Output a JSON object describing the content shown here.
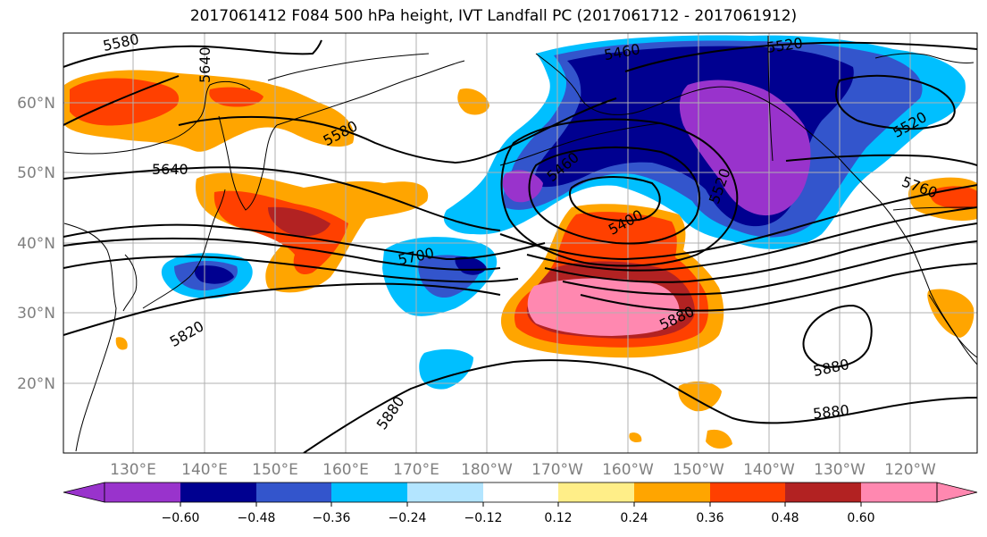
{
  "title": "2017061412 F084 500 hPa height, IVT Landfall PC (2017061712 - 2017061912)",
  "colors": {
    "purple": "#9933cc",
    "navy": "#000090",
    "royal": "#3355cc",
    "sky": "#00bfff",
    "pale_blue": "#b3e5ff",
    "white": "#ffffff",
    "pale_yellow": "#ffee88",
    "orange": "#ffa500",
    "red_orange": "#ff4000",
    "dark_red": "#b22222",
    "pink": "#ff88b0",
    "gridline": "#b0b0b0",
    "coast": "#000000"
  },
  "map": {
    "lat_labels": [
      "60°N",
      "50°N",
      "40°N",
      "30°N",
      "20°N"
    ],
    "lon_labels": [
      "130°E",
      "140°E",
      "150°E",
      "160°E",
      "170°E",
      "180°W",
      "170°W",
      "160°W",
      "150°W",
      "140°W",
      "130°W",
      "120°W"
    ],
    "contour_labels": [
      "5580",
      "5640",
      "5460",
      "5520",
      "5580",
      "5520",
      "5640",
      "5460",
      "5520",
      "5760",
      "5400",
      "5700",
      "5880",
      "5820",
      "5880",
      "5880",
      "5880"
    ]
  },
  "colorbar": {
    "tick_labels": [
      "−0.60",
      "−0.48",
      "−0.36",
      "−0.24",
      "−0.12",
      "0.12",
      "0.24",
      "0.36",
      "0.48",
      "0.60"
    ],
    "bins": [
      "purple",
      "navy",
      "royal",
      "sky",
      "pale_blue",
      "white",
      "pale_yellow",
      "orange",
      "red_orange",
      "dark_red",
      "pink"
    ]
  }
}
